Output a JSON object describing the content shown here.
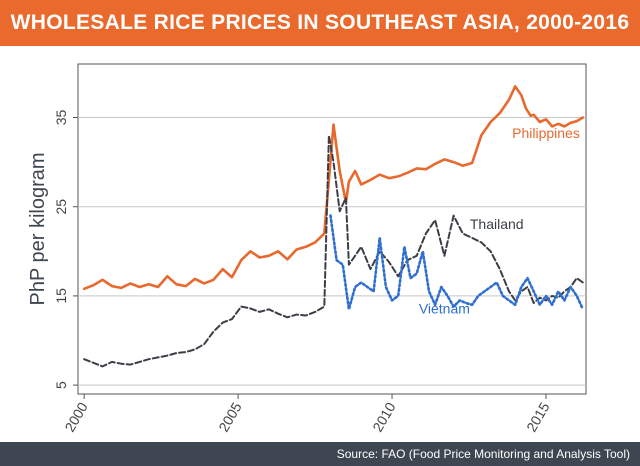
{
  "header": {
    "title": "WHOLESALE RICE PRICES IN SOUTHEAST ASIA, 2000-2016"
  },
  "footer": {
    "source": "Source: FAO (Food Price Monitoring and Analysis Tool)"
  },
  "colors": {
    "header_bg": "#ea6a2e",
    "footer_bg": "#3e4651",
    "philippines": "#e8692d",
    "thailand": "#3a3f47",
    "vietnam": "#2f6fd0",
    "grid": "#c8c8c8"
  },
  "chart_data": {
    "type": "line",
    "title": "WHOLESALE RICE PRICES IN SOUTHEAST ASIA, 2000-2016",
    "ylabel": "PhP per kilogram",
    "xlabel": "",
    "xlim": [
      1999.8,
      2016.3
    ],
    "ylim": [
      4,
      41
    ],
    "yticks": [
      5,
      15,
      25,
      35
    ],
    "xticks": [
      2000,
      2005,
      2010,
      2015
    ],
    "grid": "horizontal",
    "series": [
      {
        "name": "Philippines",
        "style": "solid",
        "x": [
          2000.0,
          2000.3,
          2000.6,
          2000.9,
          2001.2,
          2001.5,
          2001.8,
          2002.1,
          2002.4,
          2002.7,
          2003.0,
          2003.3,
          2003.6,
          2003.9,
          2004.2,
          2004.5,
          2004.8,
          2005.1,
          2005.4,
          2005.7,
          2006.0,
          2006.3,
          2006.6,
          2006.9,
          2007.2,
          2007.5,
          2007.8,
          2007.95,
          2008.1,
          2008.3,
          2008.5,
          2008.6,
          2008.8,
          2009.0,
          2009.3,
          2009.6,
          2009.9,
          2010.2,
          2010.5,
          2010.8,
          2011.1,
          2011.4,
          2011.7,
          2012.0,
          2012.3,
          2012.6,
          2012.9,
          2013.2,
          2013.5,
          2013.8,
          2014.0,
          2014.2,
          2014.35,
          2014.5,
          2014.6,
          2014.8,
          2015.0,
          2015.2,
          2015.4,
          2015.6,
          2015.8,
          2016.0,
          2016.2
        ],
        "values": [
          15.8,
          16.2,
          16.8,
          16.1,
          15.9,
          16.4,
          16.0,
          16.3,
          16.0,
          17.2,
          16.3,
          16.1,
          16.9,
          16.4,
          16.8,
          18.0,
          17.1,
          19.0,
          20.0,
          19.3,
          19.5,
          20.0,
          19.1,
          20.2,
          20.5,
          21.0,
          22.0,
          28.0,
          34.2,
          29.0,
          25.5,
          27.8,
          29.0,
          27.5,
          28.0,
          28.6,
          28.2,
          28.4,
          28.8,
          29.3,
          29.2,
          29.8,
          30.3,
          30.0,
          29.6,
          29.9,
          33.0,
          34.5,
          35.5,
          37.0,
          38.5,
          37.5,
          36.0,
          35.2,
          35.3,
          34.5,
          34.8,
          34.0,
          34.3,
          34.0,
          34.4,
          34.6,
          35.0
        ]
      },
      {
        "name": "Thailand",
        "style": "dashed",
        "x": [
          2000.0,
          2000.3,
          2000.6,
          2000.9,
          2001.2,
          2001.5,
          2001.8,
          2002.1,
          2002.4,
          2002.7,
          2003.0,
          2003.3,
          2003.6,
          2003.9,
          2004.2,
          2004.5,
          2004.8,
          2005.1,
          2005.4,
          2005.7,
          2006.0,
          2006.3,
          2006.6,
          2006.9,
          2007.2,
          2007.5,
          2007.8,
          2007.95,
          2008.1,
          2008.3,
          2008.5,
          2008.6,
          2008.8,
          2009.0,
          2009.3,
          2009.6,
          2009.9,
          2010.2,
          2010.5,
          2010.8,
          2011.1,
          2011.4,
          2011.7,
          2012.0,
          2012.3,
          2012.6,
          2012.9,
          2013.2,
          2013.5,
          2013.8,
          2014.0,
          2014.2,
          2014.4,
          2014.6,
          2014.8,
          2015.0,
          2015.2,
          2015.4,
          2015.6,
          2015.8,
          2016.0,
          2016.2
        ],
        "values": [
          7.9,
          7.5,
          7.1,
          7.6,
          7.4,
          7.3,
          7.6,
          7.9,
          8.1,
          8.3,
          8.6,
          8.7,
          9.0,
          9.6,
          11.0,
          12.0,
          12.4,
          13.8,
          13.6,
          13.2,
          13.5,
          13.0,
          12.6,
          12.9,
          12.8,
          13.2,
          13.8,
          33.0,
          30.0,
          24.5,
          26.0,
          18.5,
          19.5,
          20.5,
          18.0,
          20.0,
          18.8,
          17.2,
          19.0,
          19.5,
          22.0,
          23.5,
          19.5,
          24.0,
          22.0,
          21.5,
          21.0,
          20.0,
          18.0,
          15.5,
          14.5,
          15.5,
          16.0,
          14.2,
          14.8,
          14.5,
          15.0,
          14.8,
          15.5,
          16.0,
          17.0,
          16.5
        ]
      },
      {
        "name": "Vietnam",
        "style": "dotted",
        "x": [
          2008.0,
          2008.2,
          2008.4,
          2008.6,
          2008.8,
          2009.0,
          2009.2,
          2009.4,
          2009.6,
          2009.8,
          2010.0,
          2010.2,
          2010.4,
          2010.6,
          2010.8,
          2011.0,
          2011.2,
          2011.4,
          2011.6,
          2011.8,
          2012.0,
          2012.2,
          2012.4,
          2012.6,
          2012.8,
          2013.0,
          2013.2,
          2013.4,
          2013.6,
          2013.8,
          2014.0,
          2014.2,
          2014.4,
          2014.6,
          2014.8,
          2015.0,
          2015.2,
          2015.4,
          2015.6,
          2015.8,
          2016.0,
          2016.2
        ],
        "values": [
          24.0,
          19.0,
          18.5,
          13.5,
          16.0,
          16.5,
          16.0,
          15.5,
          21.5,
          16.0,
          14.5,
          15.0,
          20.5,
          17.0,
          17.5,
          20.0,
          15.5,
          14.0,
          16.0,
          15.0,
          13.8,
          14.5,
          14.2,
          14.0,
          15.0,
          15.5,
          16.0,
          16.5,
          15.0,
          14.5,
          14.0,
          16.0,
          17.0,
          15.5,
          14.0,
          15.0,
          14.0,
          15.5,
          14.5,
          16.0,
          15.0,
          13.5
        ]
      }
    ],
    "annotations": [
      {
        "text": "Philippines",
        "x": 2015.0,
        "y": 32.7,
        "series": "Philippines"
      },
      {
        "text": "Thailand",
        "x": 2013.4,
        "y": 22.5,
        "series": "Thailand"
      },
      {
        "text": "Vietnam",
        "x": 2011.7,
        "y": 13.0,
        "series": "Vietnam"
      }
    ]
  }
}
